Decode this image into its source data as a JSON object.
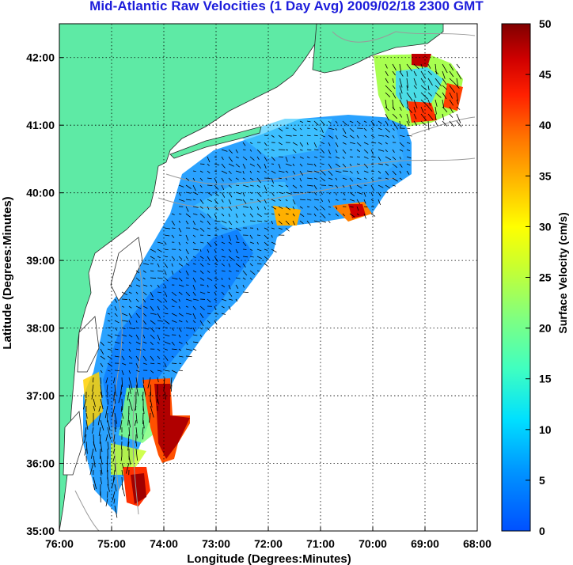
{
  "title": "Mid-Atlantic Raw Velocities (1 Day Avg) 2009/02/18 2300 GMT",
  "map": {
    "xlabel": "Longitude (Degrees:Minutes)",
    "ylabel": "Latitude (Degrees:Minutes)",
    "x_ticks": [
      "76:00",
      "75:00",
      "74:00",
      "73:00",
      "72:00",
      "71:00",
      "70:00",
      "69:00",
      "68:00"
    ],
    "y_ticks": [
      "42:00",
      "41:00",
      "40:00",
      "39:00",
      "38:00",
      "37:00",
      "36:00",
      "35:00"
    ],
    "lon_range": [
      -76,
      -68
    ],
    "lat_range": [
      35,
      42.5
    ],
    "land_color": "#5eeaa5",
    "grid": "dotted"
  },
  "colorbar": {
    "label": "Surface Velocity (cm/s)",
    "ticks": [
      "50",
      "45",
      "40",
      "35",
      "30",
      "25",
      "20",
      "15",
      "10",
      "5",
      "0"
    ],
    "range": [
      0,
      50
    ],
    "colormap": "jet"
  }
}
